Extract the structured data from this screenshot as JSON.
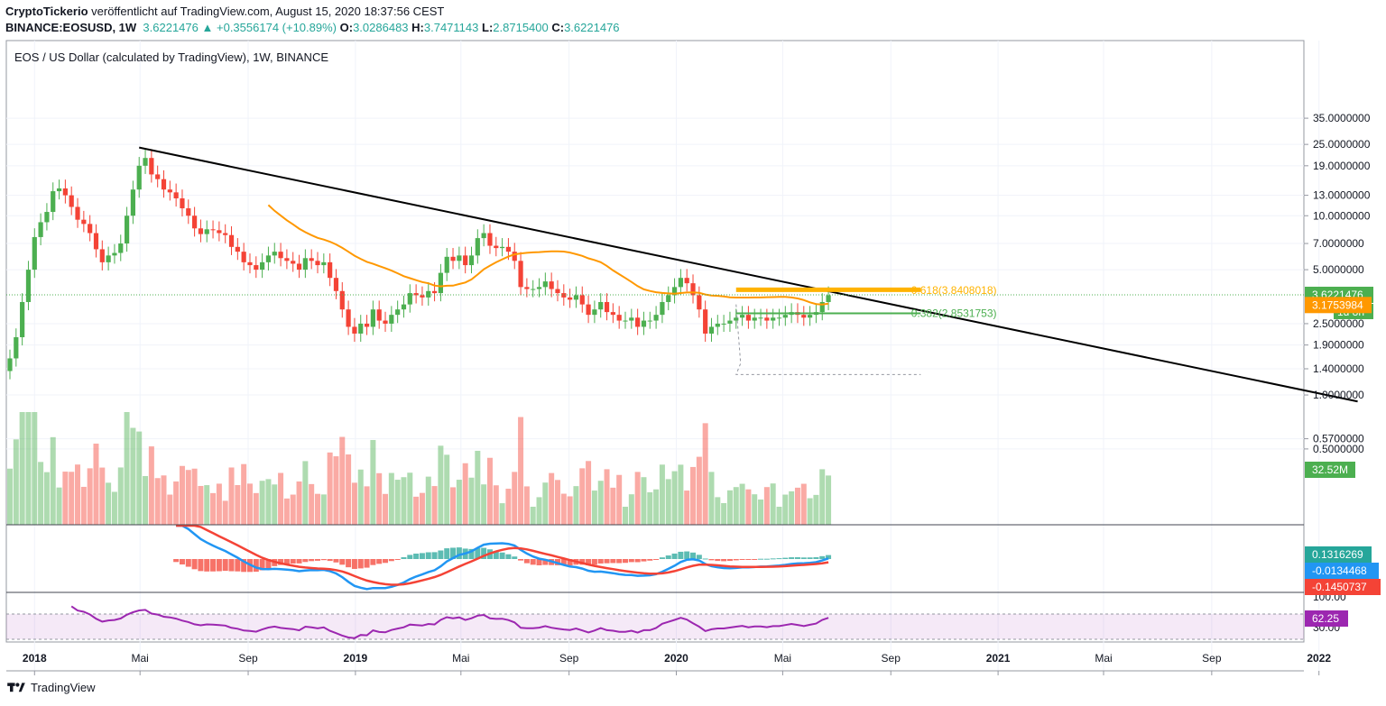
{
  "header": {
    "author": "CryptoTickerio",
    "published": "veröffentlicht auf TradingView.com, August 15, 2020 18:37:56 CEST",
    "symbol": "BINANCE:EOSUSD, 1W",
    "last": "3.6221476",
    "change_arrow": "▲",
    "change": "+0.3556174 (+10.89%)",
    "o_label": "O:",
    "o": "3.0286483",
    "h_label": "H:",
    "h": "3.7471143",
    "l_label": "L:",
    "l": "2.8715400",
    "c_label": "C:",
    "c": "3.6221476"
  },
  "footer": {
    "brand": "TradingView"
  },
  "colors": {
    "up": "#26a69a",
    "down": "#ef5350",
    "candle_up": "#4caf50",
    "candle_down": "#f44336",
    "ma": "#ff9800",
    "trend": "#000000",
    "fib_618": "#ffb300",
    "fib_382": "#4caf50",
    "macd": "#2196f3",
    "signal": "#f44336",
    "rsi": "#9c27b0"
  },
  "chart_data": {
    "type": "candlestick",
    "title": "EOS / US Dollar (calculated by TradingView), 1W, BINANCE",
    "y_scale": "log",
    "price_ticks": [
      "35.0000000",
      "25.0000000",
      "19.0000000",
      "13.0000000",
      "10.0000000",
      "7.0000000",
      "5.0000000",
      "2.5000000",
      "1.9000000",
      "1.4000000",
      "1.0000000",
      "0.5700000",
      "0.5000000"
    ],
    "x_ticks": [
      "2018",
      "Mai",
      "Sep",
      "2019",
      "Mai",
      "Sep",
      "2020",
      "Mai",
      "Sep",
      "2021",
      "Mai",
      "Sep",
      "2022"
    ],
    "last_price": "3.6221476",
    "countdown": "1d 8h",
    "ma_value": "3.1753984",
    "volume_value": "32.52M",
    "fib_618_label": "0.618(3.8408018)",
    "fib_382_label": "0.382(2.8531753)",
    "macd_hist": "0.1316269",
    "macd_line": "-0.0134468",
    "macd_signal": "-0.1450737",
    "rsi_value": "62.25",
    "rsi_ticks": [
      "100.00",
      "30.00"
    ],
    "trendline": {
      "from": [
        "2018-04-30",
        24.0
      ],
      "to": [
        "2022-02-14",
        0.92
      ]
    },
    "closes": [
      1.6,
      2.1,
      3.3,
      5.0,
      7.6,
      9.2,
      10.5,
      13.7,
      14.2,
      13.0,
      11.2,
      9.5,
      9.0,
      8.0,
      6.5,
      5.5,
      6.0,
      6.2,
      7.0,
      10.0,
      14.0,
      19.0,
      21.0,
      17.0,
      16.0,
      14.0,
      13.5,
      12.5,
      11.0,
      10.0,
      8.5,
      7.9,
      8.4,
      8.3,
      8.0,
      7.8,
      6.7,
      6.3,
      5.5,
      5.3,
      5.0,
      5.5,
      6.0,
      6.3,
      5.8,
      5.6,
      5.4,
      5.0,
      5.8,
      5.6,
      5.3,
      5.5,
      4.5,
      3.8,
      3.0,
      2.4,
      2.2,
      2.5,
      2.4,
      3.0,
      2.6,
      2.5,
      2.8,
      3.0,
      3.2,
      3.7,
      3.6,
      3.5,
      3.8,
      3.7,
      4.8,
      5.9,
      5.6,
      6.0,
      5.3,
      6.0,
      7.5,
      8.0,
      6.8,
      6.6,
      6.7,
      6.3,
      5.6,
      4.0,
      3.9,
      3.9,
      4.0,
      4.3,
      3.9,
      3.7,
      3.5,
      3.4,
      3.6,
      3.2,
      2.8,
      3.0,
      3.3,
      2.9,
      2.8,
      2.6,
      2.6,
      2.7,
      2.4,
      2.6,
      2.6,
      2.8,
      3.3,
      3.6,
      4.0,
      4.5,
      4.2,
      3.6,
      3.0,
      2.2,
      2.4,
      2.5,
      2.5,
      2.6,
      2.7,
      2.8,
      2.6,
      2.7,
      2.7,
      2.6,
      2.7,
      2.7,
      2.8,
      2.9,
      2.8,
      2.7,
      2.8,
      2.9,
      3.3,
      3.6
    ]
  }
}
